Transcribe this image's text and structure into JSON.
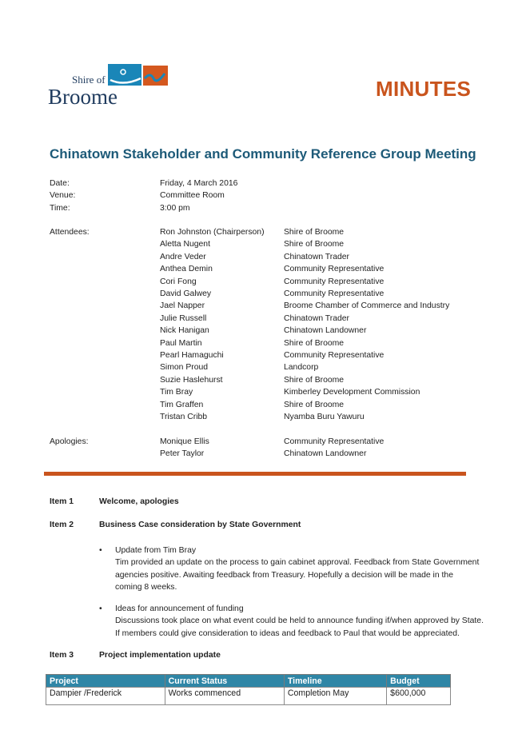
{
  "header": {
    "logo_text_small": "Shire of",
    "logo_text_large": "Broome",
    "doc_type": "MINUTES"
  },
  "title": "Chinatown Stakeholder and Community Reference Group Meeting",
  "details": [
    {
      "label": "Date:",
      "value": "Friday, 4 March 2016"
    },
    {
      "label": "Venue:",
      "value": "Committee Room"
    },
    {
      "label": "Time:",
      "value": "3:00 pm"
    }
  ],
  "attendees_label": "Attendees:",
  "attendees": [
    {
      "name": "Ron Johnston (Chairperson)",
      "org": "Shire of Broome"
    },
    {
      "name": "Aletta Nugent",
      "org": "Shire of Broome"
    },
    {
      "name": "Andre Veder",
      "org": "Chinatown Trader"
    },
    {
      "name": "Anthea Demin",
      "org": "Community Representative"
    },
    {
      "name": "Cori Fong",
      "org": "Community Representative"
    },
    {
      "name": "David Galwey",
      "org": "Community Representative"
    },
    {
      "name": "Jael Napper",
      "org": "Broome Chamber of Commerce and Industry"
    },
    {
      "name": "Julie Russell",
      "org": "Chinatown Trader"
    },
    {
      "name": "Nick Hanigan",
      "org": "Chinatown Landowner"
    },
    {
      "name": "Paul Martin",
      "org": "Shire of Broome"
    },
    {
      "name": "Pearl Hamaguchi",
      "org": "Community Representative"
    },
    {
      "name": "Simon Proud",
      "org": "Landcorp"
    },
    {
      "name": "Suzie Haslehurst",
      "org": "Shire of Broome"
    },
    {
      "name": "Tim Bray",
      "org": "Kimberley Development Commission"
    },
    {
      "name": "Tim Graffen",
      "org": "Shire of Broome"
    },
    {
      "name": "Tristan Cribb",
      "org": "Nyamba Buru Yawuru"
    }
  ],
  "apologies_label": "Apologies:",
  "apologies": [
    {
      "name": "Monique Ellis",
      "org": "Community Representative"
    },
    {
      "name": "Peter Taylor",
      "org": "Chinatown Landowner"
    }
  ],
  "items": [
    {
      "label": "Item 1",
      "title": "Welcome, apologies"
    },
    {
      "label": "Item 2",
      "title": "Business Case consideration by State Government"
    },
    {
      "label": "Item 3",
      "title": "Project implementation update"
    }
  ],
  "item2_bullets": [
    {
      "heading": "Update from Tim Bray",
      "lines": [
        "Tim provided an update on the process to gain cabinet approval.  Feedback from State Government",
        "agencies positive.  Awaiting feedback from Treasury.  Hopefully a decision will be made in the",
        "coming 8 weeks."
      ]
    },
    {
      "heading": "Ideas for announcement of funding",
      "lines": [
        "Discussions took place on what event could be held to announce funding if/when approved by State.",
        "If members could give consideration to ideas and feedback to Paul that would be appreciated."
      ]
    }
  ],
  "table": {
    "headers": [
      "Project",
      "Current Status",
      "Timeline",
      "Budget"
    ],
    "rows": [
      [
        "Dampier /Frederick",
        "Works commenced",
        "Completion May",
        "$600,000"
      ]
    ]
  },
  "colors": {
    "accent": "#c9541d",
    "title": "#1d5a78",
    "table_header": "#2f86a6"
  }
}
